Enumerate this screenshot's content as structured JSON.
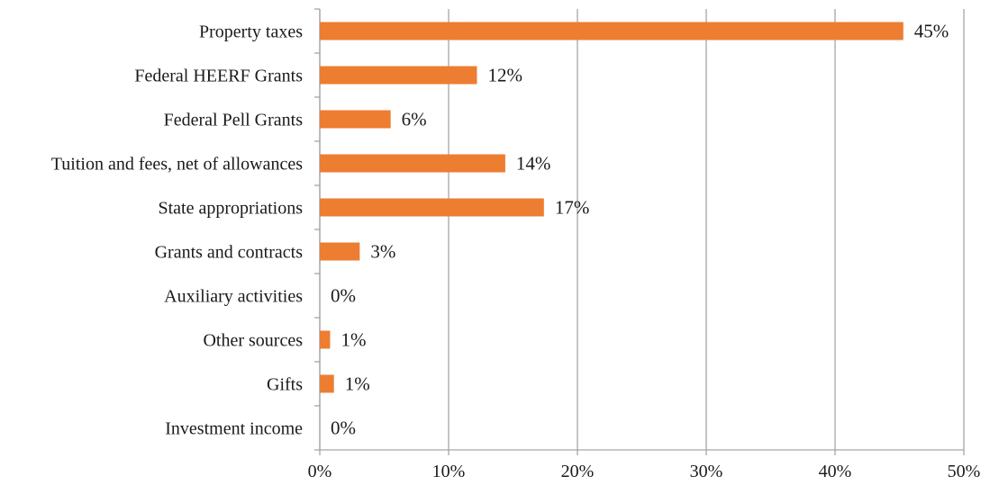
{
  "chart_data": {
    "type": "bar",
    "orientation": "horizontal",
    "categories": [
      "Property taxes",
      "Federal HEERF Grants",
      "Federal Pell Grants",
      "Tuition and fees, net of allowances",
      "State appropriations",
      "Grants and contracts",
      "Auxiliary activities",
      "Other sources",
      "Gifts",
      "Investment income"
    ],
    "values": [
      45.3,
      12.2,
      5.5,
      14.4,
      17.4,
      3.1,
      0,
      0.8,
      1.1,
      0
    ],
    "data_labels": [
      "45%",
      "12%",
      "6%",
      "14%",
      "17%",
      "3%",
      "0%",
      "1%",
      "1%",
      "0%"
    ],
    "xlim": [
      0,
      50
    ],
    "x_ticks": [
      0,
      10,
      20,
      30,
      40,
      50
    ],
    "x_tick_labels": [
      "0%",
      "10%",
      "20%",
      "30%",
      "40%",
      "50%"
    ],
    "title": "",
    "xlabel": "",
    "ylabel": "",
    "grid": "vertical",
    "legend": "none",
    "colors": {
      "bar": "#ED7D31",
      "grid": "#a6a6a6",
      "axis": "#a6a6a6"
    }
  }
}
